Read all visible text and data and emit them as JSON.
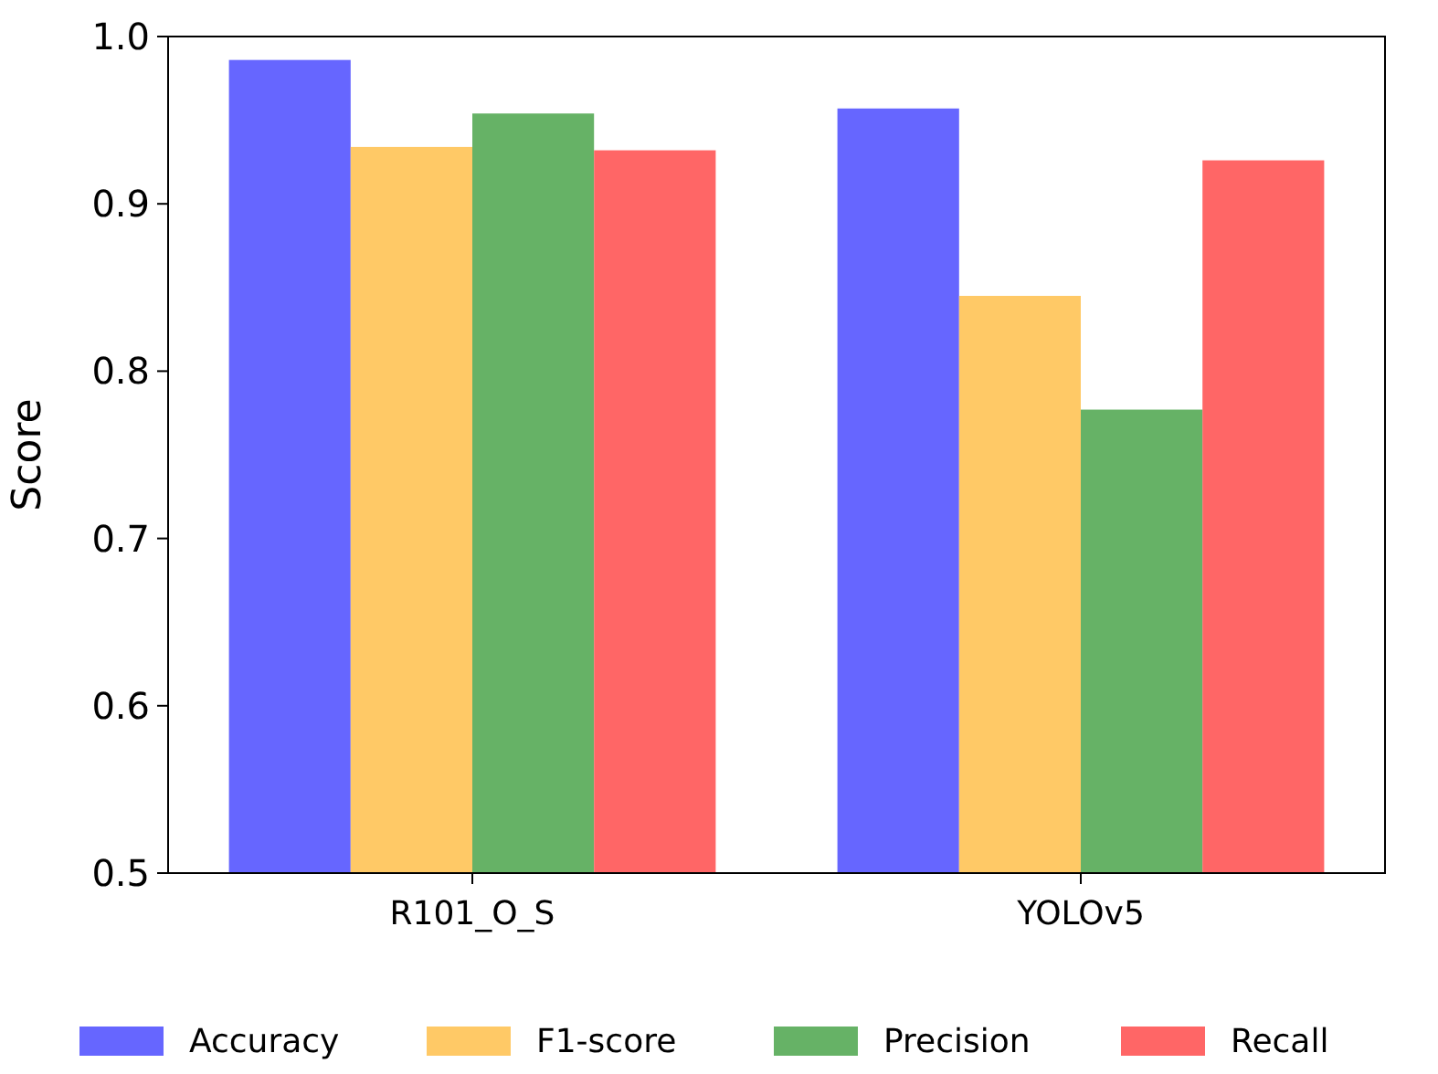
{
  "chart_data": {
    "type": "bar",
    "ylabel": "Score",
    "categories": [
      "R101_O_S",
      "YOLOv5"
    ],
    "series": [
      {
        "name": "Accuracy",
        "color": "#6666ff",
        "values": [
          0.986,
          0.957
        ]
      },
      {
        "name": "F1-score",
        "color": "#ffc966",
        "values": [
          0.934,
          0.845
        ]
      },
      {
        "name": "Precision",
        "color": "#66b266",
        "values": [
          0.954,
          0.777
        ]
      },
      {
        "name": "Recall",
        "color": "#ff6666",
        "values": [
          0.932,
          0.926
        ]
      }
    ],
    "ylim": [
      0.5,
      1.0
    ],
    "yticks": [
      0.5,
      0.6,
      0.7,
      0.8,
      0.9,
      {
        "value": 1,
        "label": "1.0"
      }
    ],
    "legend": "bottom",
    "grid": false
  }
}
